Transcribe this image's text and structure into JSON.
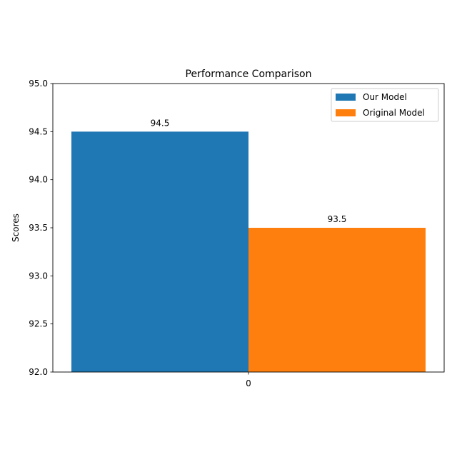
{
  "chart_data": {
    "type": "bar",
    "title": "Performance Comparison",
    "xlabel": "",
    "ylabel": "Scores",
    "categories": [
      "0"
    ],
    "ylim": [
      92.0,
      95.0
    ],
    "yticks": [
      "92.0",
      "92.5",
      "93.0",
      "93.5",
      "94.0",
      "94.5",
      "95.0"
    ],
    "series": [
      {
        "name": "Our Model",
        "values": [
          94.5
        ],
        "labels": [
          "94.5"
        ],
        "color": "#1f77b4"
      },
      {
        "name": "Original Model",
        "values": [
          93.5
        ],
        "labels": [
          "93.5"
        ],
        "color": "#ff7f0e"
      }
    ],
    "grid": false,
    "legend": "top-right"
  }
}
